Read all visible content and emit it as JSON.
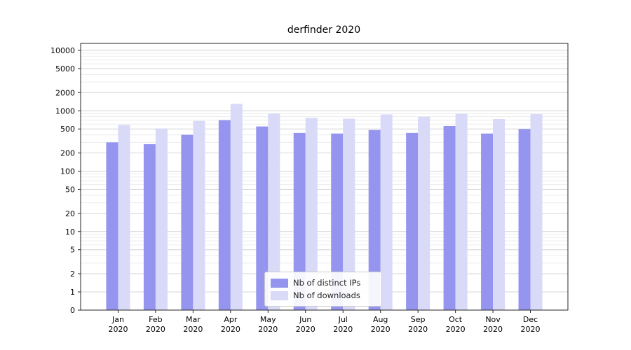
{
  "chart_data": {
    "type": "bar",
    "title": "derfinder 2020",
    "yscale": "symlog",
    "ylim": [
      0,
      10000
    ],
    "grid": true,
    "legend_position": "lower center",
    "yticks": [
      0,
      1,
      2,
      5,
      10,
      20,
      50,
      100,
      200,
      500,
      1000,
      2000,
      5000,
      10000
    ],
    "categories": [
      "Jan 2020",
      "Feb 2020",
      "Mar 2020",
      "Apr 2020",
      "May 2020",
      "Jun 2020",
      "Jul 2020",
      "Aug 2020",
      "Sep 2020",
      "Oct 2020",
      "Nov 2020",
      "Dec 2020"
    ],
    "series": [
      {
        "name": "Nb of distinct IPs",
        "color": "#9595ef",
        "values": [
          300,
          280,
          400,
          700,
          550,
          430,
          420,
          480,
          430,
          560,
          420,
          500
        ]
      },
      {
        "name": "Nb of downloads",
        "color": "#d9d9f8",
        "values": [
          580,
          510,
          680,
          1300,
          900,
          760,
          740,
          870,
          800,
          890,
          730,
          880
        ]
      }
    ]
  }
}
